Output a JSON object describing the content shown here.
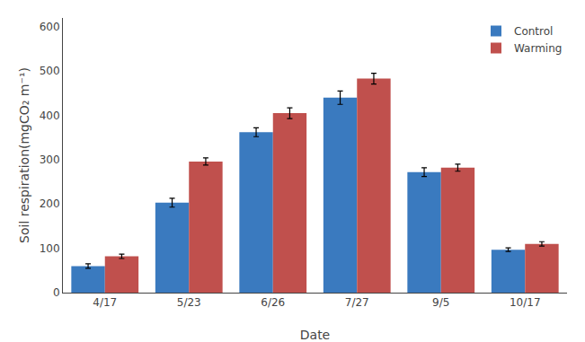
{
  "chart_data": {
    "type": "bar",
    "xlabel": "Date",
    "ylabel": "Soil respiration(mgCO₂ m⁻¹)",
    "categories": [
      "4/17",
      "5/23",
      "6/26",
      "7/27",
      "9/5",
      "10/17"
    ],
    "series": [
      {
        "name": "Control",
        "color": "#3a7abf",
        "values": [
          60,
          203,
          362,
          440,
          272,
          97
        ],
        "errors": [
          5,
          10,
          10,
          15,
          10,
          4
        ]
      },
      {
        "name": "Warming",
        "color": "#c0504d",
        "values": [
          82,
          296,
          405,
          483,
          282,
          110
        ],
        "errors": [
          5,
          8,
          12,
          12,
          8,
          5
        ]
      }
    ],
    "ylim": [
      0,
      620
    ],
    "yticks": [
      0,
      100,
      200,
      300,
      400,
      500,
      600
    ],
    "grid": false,
    "legend": "upper right"
  }
}
